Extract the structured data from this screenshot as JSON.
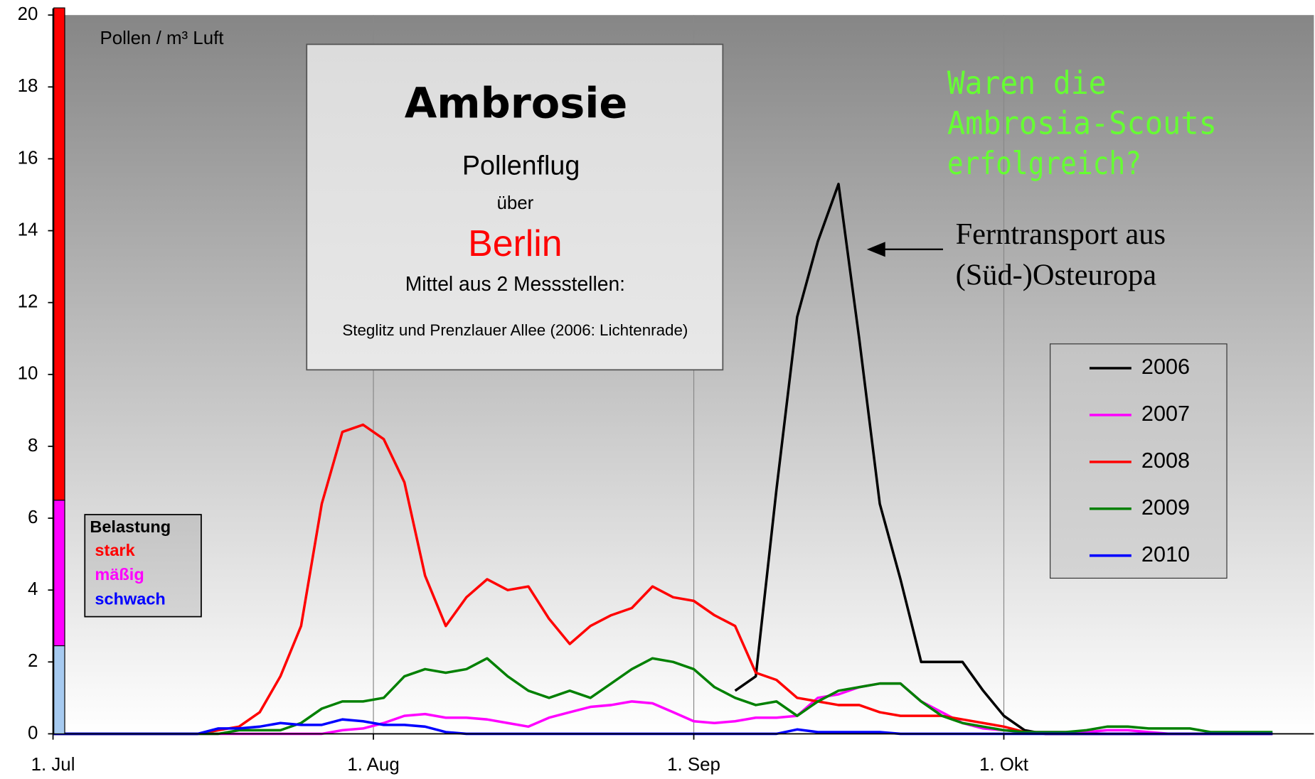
{
  "chart_data": {
    "type": "line",
    "y_label": "Pollen / m³ Luft",
    "x": [
      0,
      2,
      4,
      6,
      8,
      10,
      12,
      14,
      16,
      18,
      20,
      22,
      24,
      26,
      28,
      30,
      32,
      34,
      36,
      38,
      40,
      42,
      44,
      46,
      48,
      50,
      52,
      54,
      56,
      58,
      60,
      62,
      64,
      66,
      68,
      70,
      72,
      74,
      76,
      78,
      80,
      82,
      84,
      86,
      88,
      90,
      92,
      94,
      96,
      98,
      100,
      102,
      104,
      106,
      108,
      110,
      112,
      114,
      116,
      118,
      120,
      122
    ],
    "xlim": [
      0,
      122
    ],
    "xticks": [
      {
        "value": 0,
        "label": "1. Jul"
      },
      {
        "value": 31,
        "label": "1. Aug"
      },
      {
        "value": 62,
        "label": "1. Sep"
      },
      {
        "value": 92,
        "label": "1. Okt"
      }
    ],
    "ylim": [
      0,
      20
    ],
    "yticks": [
      0,
      2,
      4,
      6,
      8,
      10,
      12,
      14,
      16,
      18,
      20
    ],
    "grid": "x",
    "series": [
      {
        "name": "2006",
        "color": "#000000",
        "values": [
          null,
          null,
          null,
          null,
          null,
          null,
          null,
          null,
          null,
          null,
          null,
          null,
          null,
          null,
          null,
          null,
          null,
          null,
          null,
          null,
          null,
          null,
          null,
          null,
          null,
          null,
          null,
          null,
          null,
          null,
          null,
          null,
          null,
          1.2,
          1.6,
          6.8,
          11.6,
          13.7,
          15.3,
          11.0,
          6.4,
          4.3,
          2.0,
          2.0,
          2.0,
          1.2,
          0.5,
          0.1,
          0,
          0,
          0,
          0,
          0,
          0,
          0,
          0,
          null,
          null,
          null,
          null,
          null,
          null
        ]
      },
      {
        "name": "2007",
        "color": "#ff00ff",
        "values": [
          0,
          0,
          0,
          0,
          0,
          0,
          0,
          0,
          0,
          0,
          0,
          0,
          0,
          0,
          0.1,
          0.15,
          0.3,
          0.5,
          0.55,
          0.45,
          0.45,
          0.4,
          0.3,
          0.2,
          0.45,
          0.6,
          0.75,
          0.8,
          0.9,
          0.85,
          0.6,
          0.35,
          0.3,
          0.35,
          0.45,
          0.45,
          0.5,
          1.0,
          1.1,
          1.3,
          1.4,
          1.4,
          0.9,
          0.6,
          0.3,
          0.15,
          0.1,
          0.05,
          0.05,
          0.05,
          0.05,
          0.1,
          0.1,
          0.05,
          0,
          0,
          0,
          0,
          0,
          0,
          null,
          null
        ]
      },
      {
        "name": "2008",
        "color": "#ff0000",
        "values": [
          0,
          0,
          0,
          0,
          0,
          0,
          0,
          0,
          0.1,
          0.2,
          0.6,
          1.6,
          3.0,
          6.4,
          8.4,
          8.6,
          8.2,
          7.0,
          4.4,
          3.0,
          3.8,
          4.3,
          4.0,
          4.1,
          3.2,
          2.5,
          3.0,
          3.3,
          3.5,
          4.1,
          3.8,
          3.7,
          3.3,
          3.0,
          1.7,
          1.5,
          1.0,
          0.9,
          0.8,
          0.8,
          0.6,
          0.5,
          0.5,
          0.5,
          0.4,
          0.3,
          0.2,
          0.05,
          0,
          0,
          0,
          0,
          0,
          0,
          0,
          0,
          0,
          0,
          0,
          0,
          null,
          null
        ]
      },
      {
        "name": "2009",
        "color": "#008000",
        "values": [
          0,
          0,
          0,
          0,
          0,
          0,
          0,
          0,
          0,
          0.1,
          0.1,
          0.1,
          0.3,
          0.7,
          0.9,
          0.9,
          1.0,
          1.6,
          1.8,
          1.7,
          1.8,
          2.1,
          1.6,
          1.2,
          1.0,
          1.2,
          1.0,
          1.4,
          1.8,
          2.1,
          2.0,
          1.8,
          1.3,
          1.0,
          0.8,
          0.9,
          0.5,
          0.9,
          1.2,
          1.3,
          1.4,
          1.4,
          0.9,
          0.5,
          0.3,
          0.2,
          0.1,
          0.05,
          0.05,
          0.05,
          0.1,
          0.2,
          0.2,
          0.15,
          0.15,
          0.15,
          0.05,
          0.05,
          0.05,
          0.05,
          null,
          null
        ]
      },
      {
        "name": "2010",
        "color": "#0000ff",
        "values": [
          0,
          0,
          0,
          0,
          0,
          0,
          0,
          0,
          0.15,
          0.15,
          0.2,
          0.3,
          0.25,
          0.25,
          0.4,
          0.35,
          0.25,
          0.25,
          0.2,
          0.05,
          0,
          0,
          0,
          0,
          0,
          0,
          0,
          0,
          0,
          0,
          0,
          0,
          0,
          0,
          0,
          0,
          0.12,
          0.05,
          0.05,
          0.05,
          0.05,
          0,
          0,
          0,
          0,
          0,
          0,
          0,
          0,
          0,
          0,
          0,
          0,
          0,
          0,
          0,
          0,
          0,
          0,
          0,
          null,
          null
        ]
      }
    ],
    "load_legend": {
      "title": "Belastung",
      "levels": [
        {
          "name": "stark",
          "color": "#ff0000",
          "bar_color": "#ff0000",
          "range": [
            6.5,
            20.2
          ]
        },
        {
          "name": "mäßig",
          "color": "#ff00ff",
          "bar_color": "#ff00ff",
          "range": [
            2.45,
            6.5
          ]
        },
        {
          "name": "schwach",
          "color": "#0000ff",
          "bar_color": "#a6caf0",
          "range": [
            0,
            2.45
          ]
        }
      ]
    },
    "info_box": {
      "title": "Ambrosie",
      "subtitle": "Pollenflug",
      "line": "über",
      "city": "Berlin",
      "note": "Mittel aus 2 Messstellen:",
      "stations": "Steglitz und Prenzlauer Allee (2006: Lichtenrade)"
    },
    "annotation_question": [
      "Waren die",
      "Ambrosia-Scouts",
      "erfolgreich?"
    ],
    "annotation_arrow": [
      "Ferntransport aus",
      "(Süd-)Osteuropa"
    ]
  }
}
